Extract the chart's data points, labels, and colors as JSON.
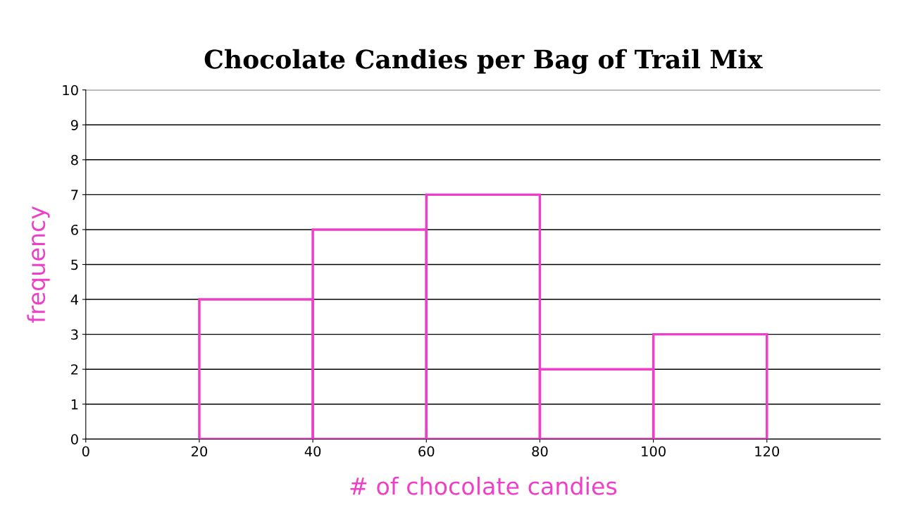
{
  "chart_data": {
    "type": "histogram",
    "title": "Chocolate Candies per Bag of Trail Mix",
    "xlabel": "# of chocolate candies",
    "ylabel": "frequency",
    "bins": [
      20,
      40,
      60,
      80,
      100,
      120
    ],
    "values": [
      4,
      6,
      7,
      2,
      3
    ],
    "color": "#ee3fc8",
    "xlim": [
      0,
      140
    ],
    "xticks": [
      0,
      20,
      40,
      60,
      80,
      100,
      120
    ],
    "ylim": [
      0,
      10
    ],
    "yticks": [
      0,
      1,
      2,
      3,
      4,
      5,
      6,
      7,
      8,
      9,
      10
    ],
    "grid": "y"
  }
}
